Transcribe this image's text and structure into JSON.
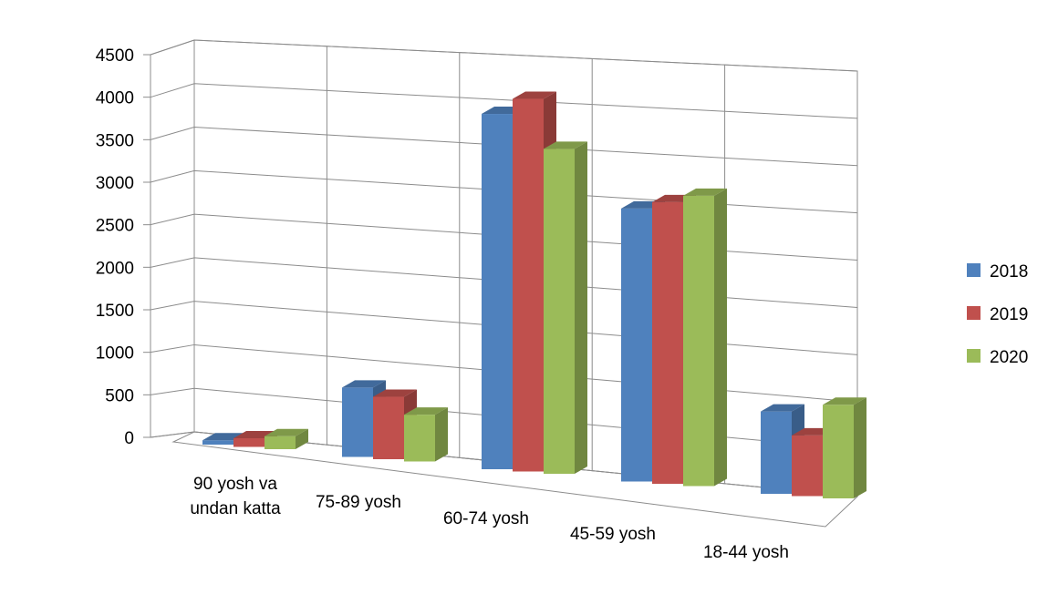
{
  "chart_data": {
    "type": "bar",
    "title": "",
    "xlabel": "",
    "ylabel": "",
    "categories": [
      "90 yosh va undan katta",
      "75-89 yosh",
      "60-74 yosh",
      "45-59 yosh",
      "18-44 yosh"
    ],
    "category_label_lines": [
      [
        "90 yosh va",
        "undan katta"
      ],
      [
        "75-89 yosh"
      ],
      [
        "60-74 yosh"
      ],
      [
        "45-59 yosh"
      ],
      [
        "18-44 yosh"
      ]
    ],
    "series": [
      {
        "name": "2018",
        "color": "#4F81BD",
        "values": [
          50,
          800,
          4100,
          3150,
          950
        ]
      },
      {
        "name": "2019",
        "color": "#C0504D",
        "values": [
          100,
          720,
          4300,
          3250,
          700
        ]
      },
      {
        "name": "2020",
        "color": "#9BBB59",
        "values": [
          150,
          540,
          3750,
          3350,
          1080
        ]
      }
    ],
    "ylim": [
      0,
      4500
    ],
    "yticks": [
      0,
      500,
      1000,
      1500,
      2000,
      2500,
      3000,
      3500,
      4000,
      4500
    ],
    "grid": true,
    "legend_position": "right",
    "style": "3d-clustered-column"
  }
}
